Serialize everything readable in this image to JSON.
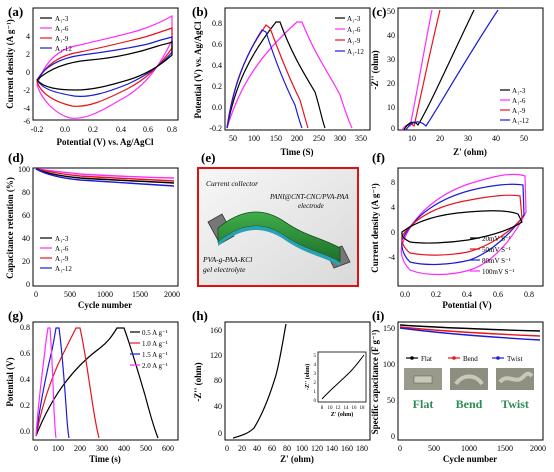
{
  "colors": {
    "black": "#000000",
    "red": "#e8141b",
    "magenta": "#ff2bff",
    "blue": "#1b1bd6",
    "green": "#2e8b57"
  },
  "panels": {
    "a": {
      "label": "(a)",
      "ylabel": "Current density (A g⁻¹)",
      "xlabel": "Potential (V) vs. Ag/AgCl",
      "xticks": [
        "-0.2",
        "0.0",
        "0.2",
        "0.4",
        "0.6",
        "0.8"
      ],
      "yticks": [
        "4",
        "2",
        "0",
        "-2",
        "-4",
        "-6"
      ],
      "legend": [
        "A₁-3",
        "A₁-6",
        "A₁-9",
        "A₁-12"
      ]
    },
    "b": {
      "label": "(b)",
      "ylabel": "Potential (V) vs. Ag/AgCl",
      "xlabel": "Time (S)",
      "xticks": [
        "50",
        "100",
        "150",
        "200",
        "250",
        "300",
        "350"
      ],
      "yticks": [
        "0.8",
        "0.6",
        "0.4",
        "0.2",
        "0.0",
        "-0.2"
      ],
      "legend": [
        "A₁-3",
        "A₁-6",
        "A₁-9",
        "A₁-12"
      ]
    },
    "c": {
      "label": "(c)",
      "ylabel": "-Z'' (ohm)",
      "xlabel": "Z' (ohm)",
      "xticks": [
        "10",
        "20",
        "30",
        "40",
        "50"
      ],
      "yticks": [
        "50",
        "40",
        "30",
        "20",
        "10",
        "0"
      ],
      "legend": [
        "A₁-3",
        "A₁-6",
        "A₁-9",
        "A₁-12"
      ]
    },
    "d": {
      "label": "(d)",
      "ylabel": "Capacitance retention (%)",
      "xlabel": "Cycle number",
      "xticks": [
        "0",
        "500",
        "1000",
        "1500",
        "2000"
      ],
      "yticks": [
        "100",
        "80",
        "60",
        "40",
        "20",
        "0"
      ],
      "legend": [
        "A₁-3",
        "A₁-6",
        "A₁-9",
        "A₁-12"
      ]
    },
    "e": {
      "label": "(e)",
      "t1": "Current collector",
      "t2": "PANI@CNT-CNC/PVA-PAA",
      "t3": "electrode",
      "t4": "PVA-g-PAA-KCl",
      "t5": "gel electrolyte"
    },
    "f": {
      "label": "(f)",
      "ylabel": "Current density (A g⁻¹)",
      "xlabel": "Potential (V)",
      "xticks": [
        "0.0",
        "0.2",
        "0.4",
        "0.6",
        "0.8"
      ],
      "yticks": [
        "8",
        "4",
        "0",
        "-4"
      ],
      "legend": [
        "20mV S⁻¹",
        "50mV S⁻¹",
        "80mV S⁻¹",
        "100mV S⁻¹"
      ]
    },
    "g": {
      "label": "(g)",
      "ylabel": "Potential (V)",
      "xlabel": "Time (s)",
      "xticks": [
        "0",
        "100",
        "200",
        "300",
        "400",
        "500",
        "600"
      ],
      "yticks": [
        "0.8",
        "0.6",
        "0.4",
        "0.2",
        "0.0"
      ],
      "legend": [
        "0.5 A g⁻¹",
        "1.0 A g⁻¹",
        "1.5 A g⁻¹",
        "2.0 A g⁻¹"
      ]
    },
    "h": {
      "label": "(h)",
      "ylabel": "-Z'' (ohm)",
      "xlabel": "Z' (ohm)",
      "xticks": [
        "0",
        "20",
        "40",
        "60",
        "80",
        "100",
        "120",
        "140",
        "160",
        "180"
      ],
      "yticks": [
        "160",
        "120",
        "80",
        "40",
        "0"
      ],
      "inset_xticks": [
        "8",
        "10",
        "12",
        "14",
        "16",
        "18"
      ],
      "inset_yticks": [
        "5",
        "4",
        "3",
        "2",
        "1",
        "0"
      ],
      "inset_xlabel": "Z' (ohm)",
      "inset_ylabel": "-Z'' (ohm)"
    },
    "i": {
      "label": "(i)",
      "ylabel": "Specific capacitance (F g⁻¹)",
      "xlabel": "Cycle number",
      "xticks": [
        "0",
        "500",
        "1000",
        "1500",
        "2000"
      ],
      "yticks": [
        "150",
        "100",
        "50",
        "0"
      ],
      "legend": [
        "Flat",
        "Bend",
        "Twist"
      ],
      "photo_labels": [
        "Flat",
        "Bend",
        "Twist"
      ]
    }
  }
}
